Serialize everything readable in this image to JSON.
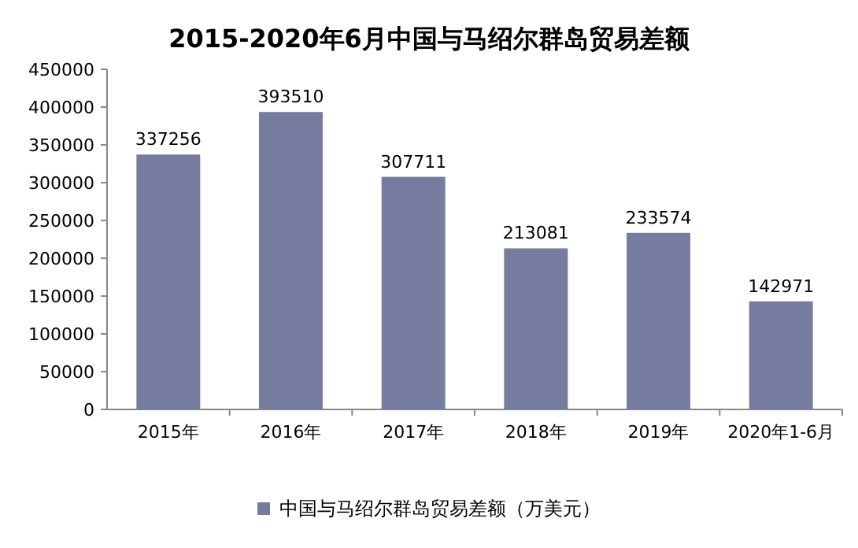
{
  "chart_data": {
    "type": "bar",
    "title": "2015-2020年6月中国与马绍尔群岛贸易差额",
    "categories": [
      "2015年",
      "2016年",
      "2017年",
      "2018年",
      "2019年",
      "2020年1-6月"
    ],
    "series": [
      {
        "name": "中国与马绍尔群岛贸易差额（万美元）",
        "color": "#767c9f",
        "values": [
          337256,
          393510,
          307711,
          213081,
          233574,
          142971
        ]
      }
    ],
    "ylim": [
      0,
      450000
    ],
    "yticks": [
      0,
      50000,
      100000,
      150000,
      200000,
      250000,
      300000,
      350000,
      400000,
      450000
    ],
    "data_labels": true,
    "legend": "bottom"
  }
}
